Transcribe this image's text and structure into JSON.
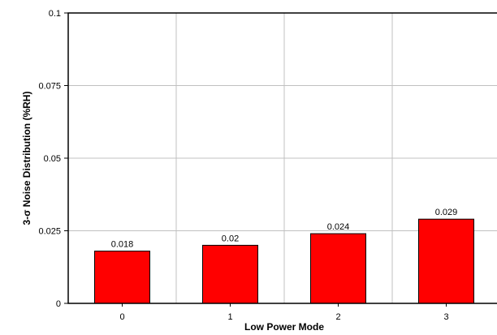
{
  "chart_data": {
    "type": "bar",
    "categories": [
      "0",
      "1",
      "2",
      "3"
    ],
    "values": [
      0.018,
      0.02,
      0.024,
      0.029
    ],
    "value_labels": [
      "0.018",
      "0.02",
      "0.024",
      "0.029"
    ],
    "xlabel": "Low Power Mode",
    "ylabel": "3-σ Noise Distribution (%RH)",
    "ylim": [
      0,
      0.1
    ],
    "yticks": [
      0,
      0.025,
      0.05,
      0.075,
      0.1
    ],
    "ytick_labels": [
      "0",
      "0.025",
      "0.05",
      "0.075",
      "0.1"
    ],
    "grid": true,
    "colors": {
      "bar_fill": "#ff0000",
      "bar_stroke": "#000000",
      "grid": "#c0c0c0",
      "axis": "#000000"
    }
  }
}
